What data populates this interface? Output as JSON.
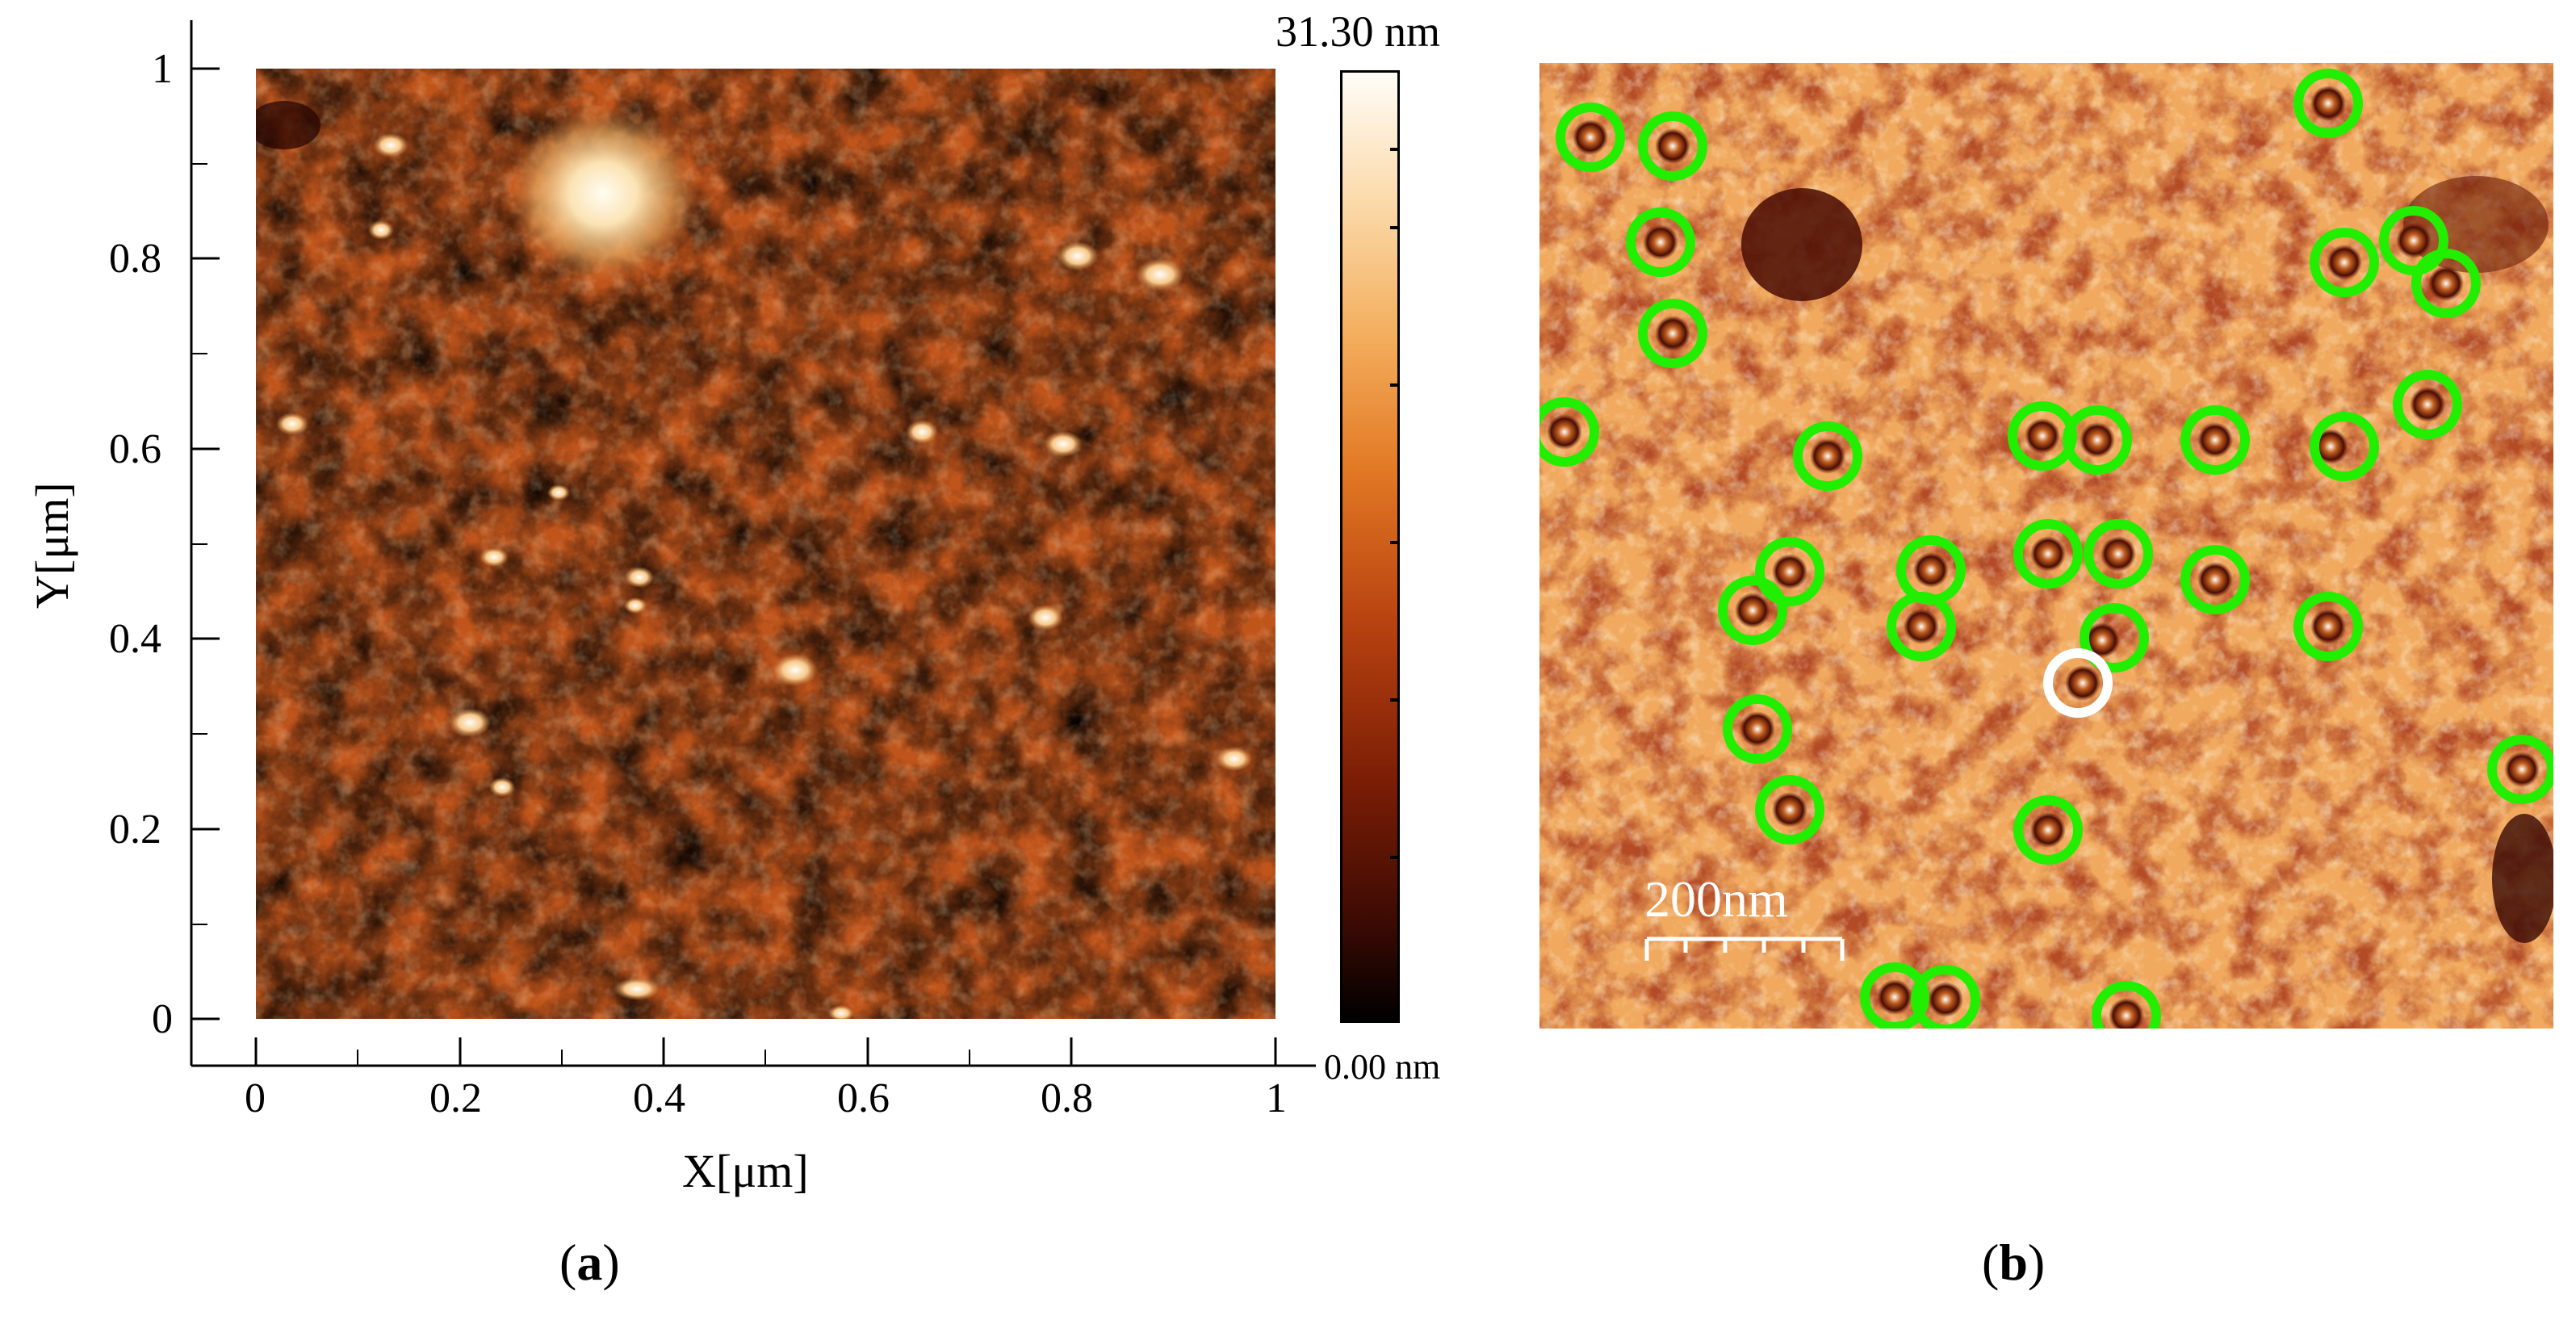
{
  "panel_a": {
    "label_open": "(",
    "label_letter": "a",
    "label_close": ")",
    "x_axis_title": "X[μm]",
    "y_axis_title": "Y[μm]",
    "x_ticks": [
      "0",
      "0.2",
      "0.4",
      "0.6",
      "0.8",
      "1"
    ],
    "y_ticks": [
      "0",
      "0.2",
      "0.4",
      "0.6",
      "0.8",
      "1"
    ],
    "colorbar_max": "31.30 nm",
    "colorbar_min": "0.00 nm"
  },
  "panel_b": {
    "label_open": "(",
    "label_letter": "b",
    "label_close": ")",
    "scale_bar_label": "200nm",
    "marker_color": "#22ee00",
    "highlight_color": "#ffffff"
  },
  "colors": {
    "afm_dark": "#3a0a04",
    "afm_mid": "#b84a14",
    "afm_light": "#f7c17a"
  }
}
